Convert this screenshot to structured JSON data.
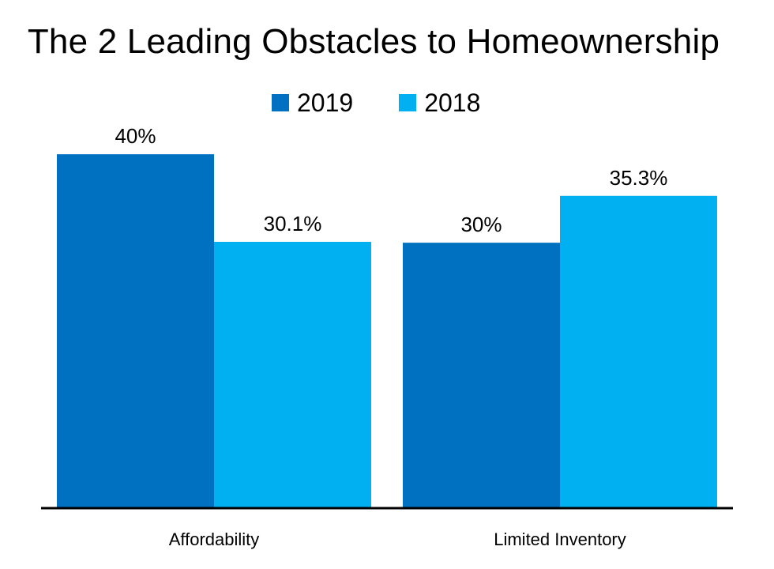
{
  "chart_data": {
    "type": "bar",
    "title": "The 2 Leading Obstacles to Homeownership",
    "xlabel": "",
    "ylabel": "",
    "categories": [
      "Affordability",
      "Limited Inventory"
    ],
    "series": [
      {
        "name": "2019",
        "color": "#0070C0",
        "values": [
          40,
          30
        ],
        "labels": [
          "40%",
          "30%"
        ]
      },
      {
        "name": "2018",
        "color": "#00B0F0",
        "values": [
          30.1,
          35.3
        ],
        "labels": [
          "30.1%",
          "35.3%"
        ]
      }
    ],
    "ylim": [
      0,
      46
    ],
    "grid": false,
    "legend_position": "top"
  }
}
